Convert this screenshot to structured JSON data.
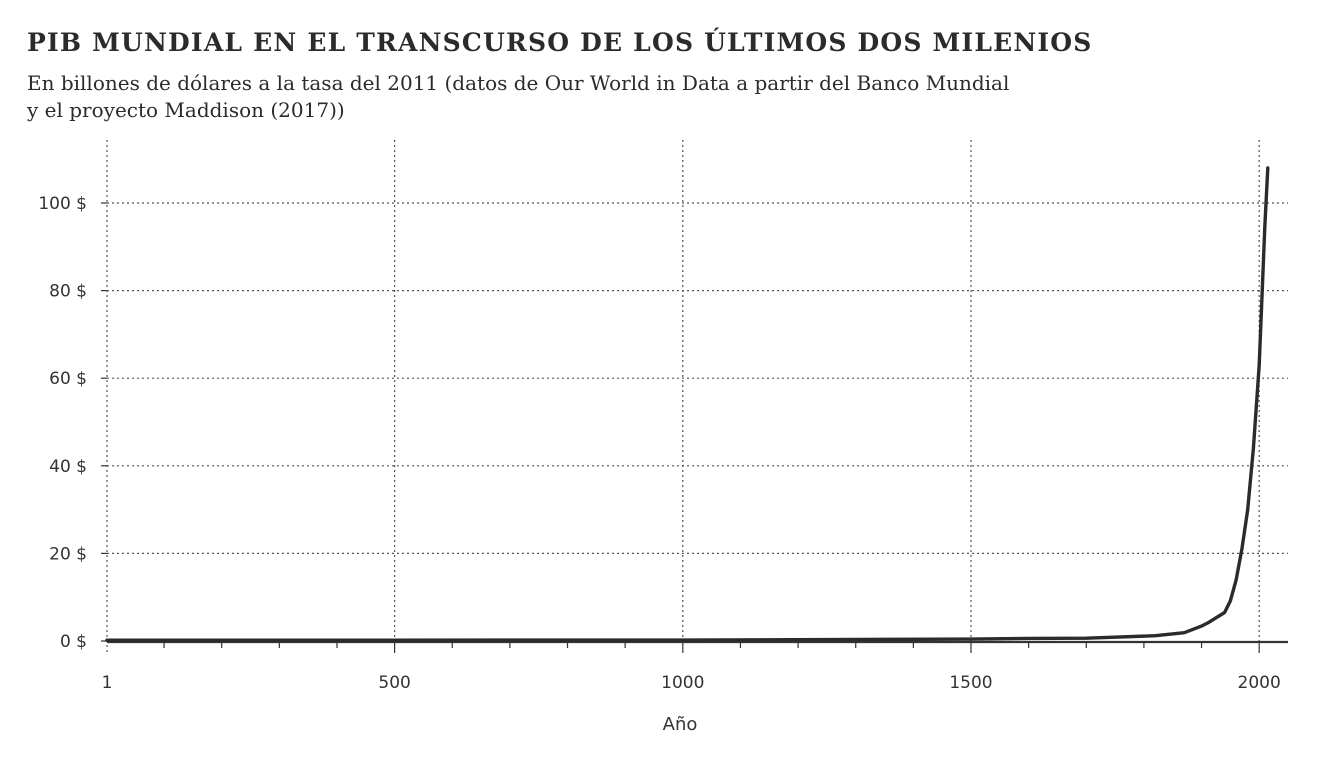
{
  "chart_data": {
    "type": "line",
    "title": "PIB MUNDIAL EN EL TRANSCURSO DE LOS ÚLTIMOS DOS MILENIOS",
    "subtitle_lines": [
      "En billones de dólares a la tasa del 2011 (datos de Our World in Data a partir del Banco Mundial",
      "y el proyecto Maddison (2017))"
    ],
    "xlabel": "Año",
    "ylabel": "",
    "x_ticks": [
      1,
      500,
      1000,
      1500,
      2000
    ],
    "x_tick_labels": [
      "1",
      "500",
      "1000",
      "1500",
      "2000"
    ],
    "y_ticks": [
      0,
      20,
      40,
      60,
      80,
      100
    ],
    "y_tick_labels": [
      "0 $",
      "20 $",
      "40 $",
      "60 $",
      "80 $",
      "100 $"
    ],
    "xlim": [
      1,
      2050
    ],
    "ylim": [
      0,
      110
    ],
    "grid": true,
    "x": [
      1,
      1000,
      1500,
      1600,
      1700,
      1820,
      1870,
      1900,
      1913,
      1940,
      1950,
      1960,
      1970,
      1980,
      1990,
      2000,
      2010,
      2015
    ],
    "series": [
      {
        "values": [
          0.18,
          0.21,
          0.43,
          0.6,
          0.64,
          1.2,
          1.9,
          3.4,
          4.3,
          6.5,
          9.2,
          13.9,
          21.0,
          30.0,
          44.0,
          63.0,
          95.0,
          108.0
        ]
      }
    ],
    "colors": {
      "line": "#2b2b2b",
      "grid": "#555555",
      "axis": "#333333"
    }
  }
}
